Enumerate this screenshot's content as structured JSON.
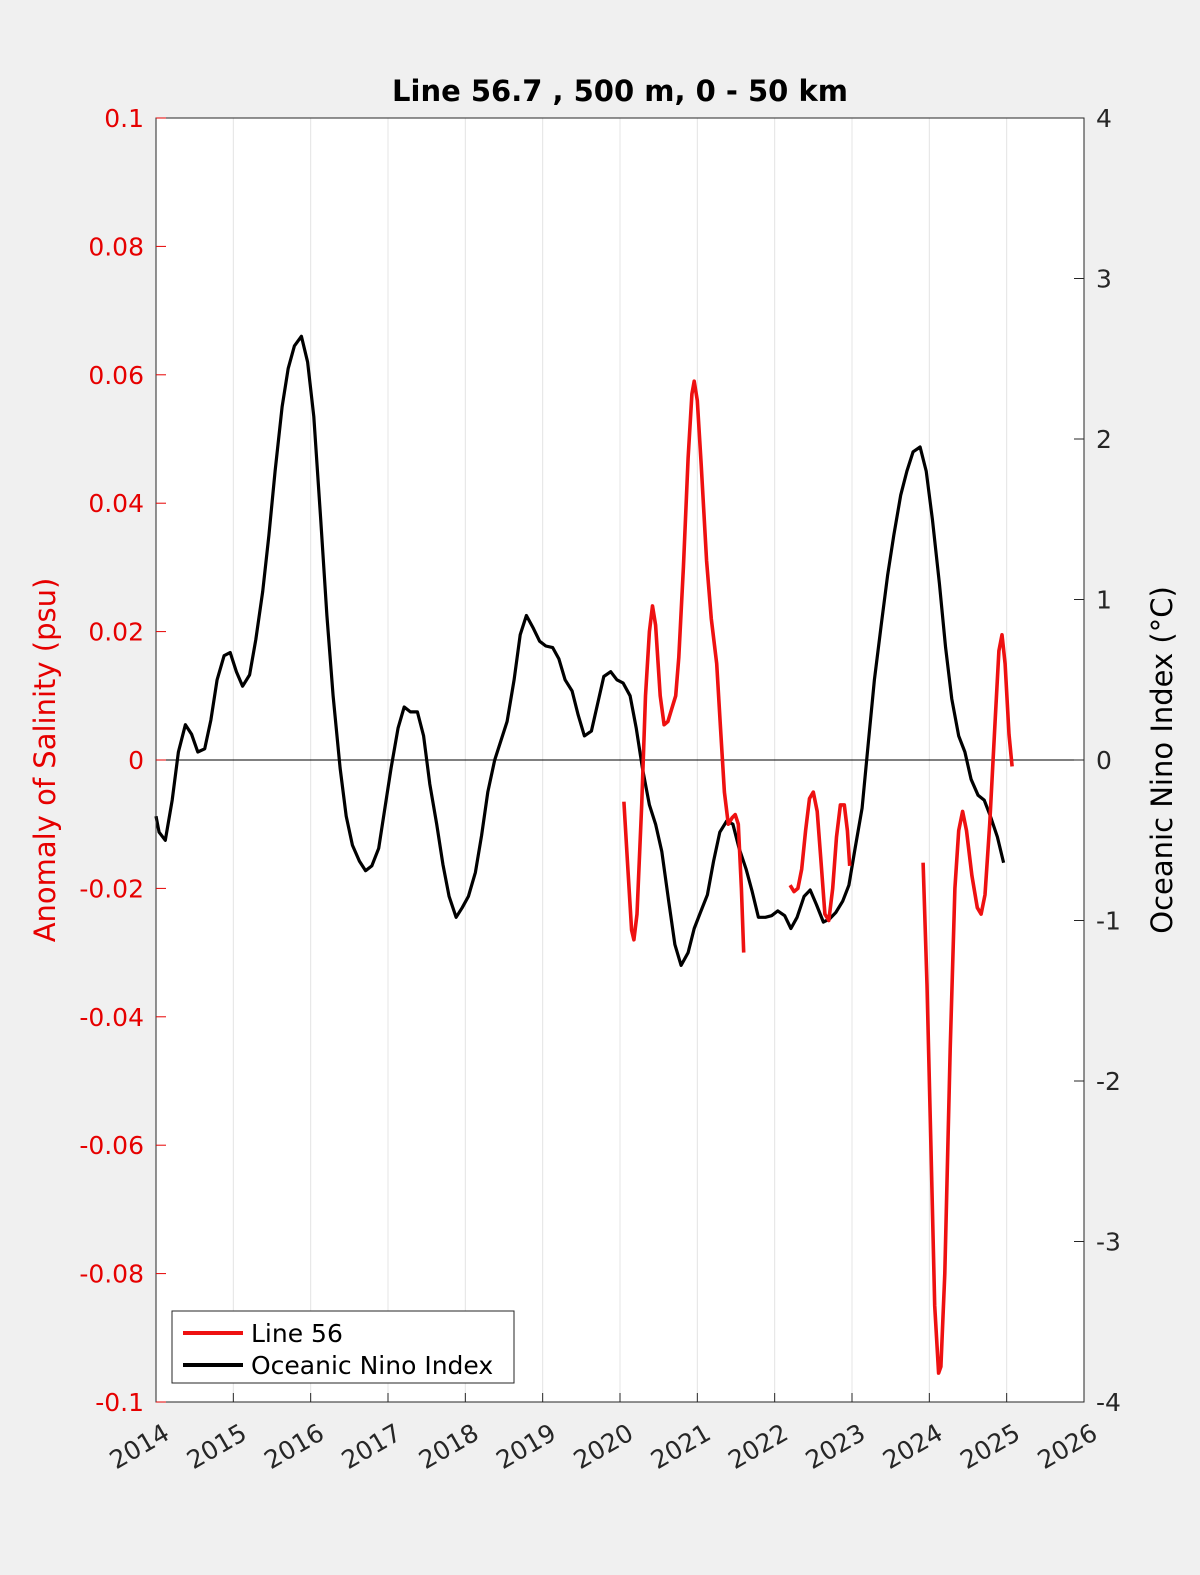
{
  "chart_data": {
    "type": "line",
    "title": "Line 56.7 , 500 m, 0 - 50 km",
    "xlabel": "",
    "ylabel_left": "Anomaly of Salinity (psu)",
    "ylabel_right": "Oceanic Nino Index (°C)",
    "xlim": [
      2014,
      2026
    ],
    "ylim_left": [
      -0.1,
      0.1
    ],
    "ylim_right": [
      -4,
      4
    ],
    "x_ticks": [
      "2014",
      "2015",
      "2016",
      "2017",
      "2018",
      "2019",
      "2020",
      "2021",
      "2022",
      "2023",
      "2024",
      "2025",
      "2026"
    ],
    "y_left_ticks": [
      "0.1",
      "0.08",
      "0.06",
      "0.04",
      "0.02",
      "0",
      "-0.02",
      "-0.04",
      "-0.06",
      "-0.08",
      "-0.1"
    ],
    "y_right_ticks": [
      "4",
      "3",
      "2",
      "1",
      "0",
      "-1",
      "-2",
      "-3",
      "-4"
    ],
    "grid": "vertical",
    "zero_line": true,
    "legend_position": "bottom-left",
    "colors": {
      "left_axis": "#e60000",
      "salinity": "#ee1111",
      "oni": "#000000",
      "background": "#f0f0f0",
      "plot": "#ffffff"
    },
    "series": [
      {
        "name": "Line 56",
        "axis": "left",
        "segments": [
          [
            [
              2020.05,
              -0.0065
            ],
            [
              2020.1,
              -0.0165
            ],
            [
              2020.15,
              -0.0265
            ],
            [
              2020.18,
              -0.028
            ],
            [
              2020.22,
              -0.024
            ],
            [
              2020.28,
              -0.007
            ],
            [
              2020.33,
              0.01
            ],
            [
              2020.38,
              0.02
            ],
            [
              2020.42,
              0.024
            ],
            [
              2020.46,
              0.021
            ],
            [
              2020.52,
              0.01
            ],
            [
              2020.57,
              0.0055
            ],
            [
              2020.62,
              0.006
            ],
            [
              2020.67,
              0.008
            ],
            [
              2020.72,
              0.01
            ],
            [
              2020.76,
              0.016
            ],
            [
              2020.82,
              0.03
            ],
            [
              2020.88,
              0.047
            ],
            [
              2020.93,
              0.057
            ],
            [
              2020.96,
              0.059
            ],
            [
              2021.0,
              0.056
            ],
            [
              2021.05,
              0.046
            ],
            [
              2021.12,
              0.031
            ],
            [
              2021.18,
              0.022
            ],
            [
              2021.25,
              0.015
            ],
            [
              2021.3,
              0.005
            ],
            [
              2021.35,
              -0.005
            ],
            [
              2021.4,
              -0.01
            ],
            [
              2021.45,
              -0.009
            ],
            [
              2021.49,
              -0.0085
            ],
            [
              2021.53,
              -0.01
            ],
            [
              2021.57,
              -0.02
            ],
            [
              2021.6,
              -0.03
            ]
          ],
          [
            [
              2022.2,
              -0.0195
            ],
            [
              2022.25,
              -0.0205
            ],
            [
              2022.3,
              -0.02
            ],
            [
              2022.35,
              -0.017
            ],
            [
              2022.4,
              -0.011
            ],
            [
              2022.45,
              -0.006
            ],
            [
              2022.5,
              -0.005
            ],
            [
              2022.55,
              -0.008
            ],
            [
              2022.6,
              -0.016
            ],
            [
              2022.65,
              -0.024
            ],
            [
              2022.7,
              -0.025
            ],
            [
              2022.75,
              -0.02
            ],
            [
              2022.8,
              -0.012
            ],
            [
              2022.85,
              -0.007
            ],
            [
              2022.9,
              -0.007
            ],
            [
              2022.94,
              -0.011
            ],
            [
              2022.97,
              -0.0165
            ]
          ],
          [
            [
              2023.92,
              -0.016
            ],
            [
              2023.97,
              -0.035
            ],
            [
              2024.02,
              -0.06
            ],
            [
              2024.07,
              -0.085
            ],
            [
              2024.12,
              -0.0955
            ],
            [
              2024.15,
              -0.0945
            ],
            [
              2024.2,
              -0.08
            ],
            [
              2024.27,
              -0.045
            ],
            [
              2024.33,
              -0.02
            ],
            [
              2024.38,
              -0.011
            ],
            [
              2024.43,
              -0.008
            ],
            [
              2024.48,
              -0.011
            ],
            [
              2024.55,
              -0.018
            ],
            [
              2024.62,
              -0.023
            ],
            [
              2024.67,
              -0.024
            ],
            [
              2024.72,
              -0.021
            ],
            [
              2024.78,
              -0.01
            ],
            [
              2024.85,
              0.006
            ],
            [
              2024.9,
              0.017
            ],
            [
              2024.94,
              0.0195
            ],
            [
              2024.98,
              0.015
            ],
            [
              2025.03,
              0.004
            ],
            [
              2025.07,
              -0.001
            ]
          ]
        ]
      },
      {
        "name": "Oceanic Nino Index",
        "axis": "right",
        "points": [
          [
            2014.0,
            -0.35
          ],
          [
            2014.04,
            -0.45
          ],
          [
            2014.12,
            -0.5
          ],
          [
            2014.21,
            -0.25
          ],
          [
            2014.29,
            0.05
          ],
          [
            2014.38,
            0.22
          ],
          [
            2014.46,
            0.16
          ],
          [
            2014.54,
            0.05
          ],
          [
            2014.63,
            0.07
          ],
          [
            2014.71,
            0.25
          ],
          [
            2014.79,
            0.5
          ],
          [
            2014.88,
            0.65
          ],
          [
            2014.96,
            0.67
          ],
          [
            2015.04,
            0.55
          ],
          [
            2015.12,
            0.46
          ],
          [
            2015.21,
            0.53
          ],
          [
            2015.29,
            0.75
          ],
          [
            2015.38,
            1.05
          ],
          [
            2015.46,
            1.4
          ],
          [
            2015.54,
            1.8
          ],
          [
            2015.63,
            2.2
          ],
          [
            2015.71,
            2.44
          ],
          [
            2015.79,
            2.58
          ],
          [
            2015.88,
            2.64
          ],
          [
            2015.96,
            2.48
          ],
          [
            2016.04,
            2.14
          ],
          [
            2016.13,
            1.5
          ],
          [
            2016.21,
            0.9
          ],
          [
            2016.29,
            0.4
          ],
          [
            2016.38,
            -0.05
          ],
          [
            2016.46,
            -0.35
          ],
          [
            2016.54,
            -0.53
          ],
          [
            2016.63,
            -0.63
          ],
          [
            2016.71,
            -0.69
          ],
          [
            2016.79,
            -0.66
          ],
          [
            2016.88,
            -0.55
          ],
          [
            2016.96,
            -0.3
          ],
          [
            2017.04,
            -0.05
          ],
          [
            2017.13,
            0.2
          ],
          [
            2017.21,
            0.33
          ],
          [
            2017.29,
            0.3
          ],
          [
            2017.38,
            0.3
          ],
          [
            2017.46,
            0.15
          ],
          [
            2017.54,
            -0.15
          ],
          [
            2017.63,
            -0.4
          ],
          [
            2017.71,
            -0.65
          ],
          [
            2017.79,
            -0.85
          ],
          [
            2017.88,
            -0.98
          ],
          [
            2017.96,
            -0.92
          ],
          [
            2018.04,
            -0.85
          ],
          [
            2018.13,
            -0.7
          ],
          [
            2018.21,
            -0.47
          ],
          [
            2018.29,
            -0.2
          ],
          [
            2018.38,
            0.0
          ],
          [
            2018.46,
            0.12
          ],
          [
            2018.54,
            0.24
          ],
          [
            2018.63,
            0.5
          ],
          [
            2018.71,
            0.78
          ],
          [
            2018.79,
            0.9
          ],
          [
            2018.88,
            0.82
          ],
          [
            2018.96,
            0.74
          ],
          [
            2019.04,
            0.71
          ],
          [
            2019.13,
            0.7
          ],
          [
            2019.21,
            0.63
          ],
          [
            2019.29,
            0.5
          ],
          [
            2019.38,
            0.43
          ],
          [
            2019.46,
            0.28
          ],
          [
            2019.54,
            0.15
          ],
          [
            2019.63,
            0.18
          ],
          [
            2019.71,
            0.35
          ],
          [
            2019.79,
            0.52
          ],
          [
            2019.88,
            0.55
          ],
          [
            2019.96,
            0.5
          ],
          [
            2020.04,
            0.48
          ],
          [
            2020.13,
            0.4
          ],
          [
            2020.21,
            0.2
          ],
          [
            2020.29,
            -0.05
          ],
          [
            2020.38,
            -0.28
          ],
          [
            2020.46,
            -0.4
          ],
          [
            2020.54,
            -0.57
          ],
          [
            2020.63,
            -0.88
          ],
          [
            2020.71,
            -1.15
          ],
          [
            2020.79,
            -1.28
          ],
          [
            2020.88,
            -1.2
          ],
          [
            2020.96,
            -1.05
          ],
          [
            2021.04,
            -0.95
          ],
          [
            2021.13,
            -0.84
          ],
          [
            2021.21,
            -0.63
          ],
          [
            2021.29,
            -0.45
          ],
          [
            2021.38,
            -0.38
          ],
          [
            2021.46,
            -0.4
          ],
          [
            2021.54,
            -0.55
          ],
          [
            2021.63,
            -0.68
          ],
          [
            2021.71,
            -0.82
          ],
          [
            2021.79,
            -0.98
          ],
          [
            2021.88,
            -0.98
          ],
          [
            2021.96,
            -0.97
          ],
          [
            2022.04,
            -0.94
          ],
          [
            2022.13,
            -0.97
          ],
          [
            2022.21,
            -1.05
          ],
          [
            2022.29,
            -0.98
          ],
          [
            2022.38,
            -0.85
          ],
          [
            2022.46,
            -0.81
          ],
          [
            2022.54,
            -0.9
          ],
          [
            2022.63,
            -1.01
          ],
          [
            2022.71,
            -0.99
          ],
          [
            2022.79,
            -0.95
          ],
          [
            2022.88,
            -0.88
          ],
          [
            2022.96,
            -0.78
          ],
          [
            2023.04,
            -0.55
          ],
          [
            2023.13,
            -0.3
          ],
          [
            2023.21,
            0.1
          ],
          [
            2023.29,
            0.5
          ],
          [
            2023.38,
            0.85
          ],
          [
            2023.46,
            1.15
          ],
          [
            2023.54,
            1.4
          ],
          [
            2023.63,
            1.65
          ],
          [
            2023.71,
            1.8
          ],
          [
            2023.79,
            1.92
          ],
          [
            2023.88,
            1.95
          ],
          [
            2023.96,
            1.8
          ],
          [
            2024.04,
            1.5
          ],
          [
            2024.13,
            1.1
          ],
          [
            2024.21,
            0.7
          ],
          [
            2024.29,
            0.38
          ],
          [
            2024.38,
            0.15
          ],
          [
            2024.46,
            0.05
          ],
          [
            2024.54,
            -0.12
          ],
          [
            2024.63,
            -0.22
          ],
          [
            2024.71,
            -0.25
          ],
          [
            2024.79,
            -0.35
          ],
          [
            2024.88,
            -0.48
          ],
          [
            2024.96,
            -0.64
          ]
        ]
      }
    ]
  }
}
